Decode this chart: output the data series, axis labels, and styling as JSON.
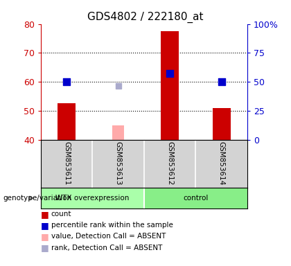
{
  "title": "GDS4802 / 222180_at",
  "samples": [
    "GSM853611",
    "GSM853613",
    "GSM853612",
    "GSM853614"
  ],
  "count_values": [
    52.5,
    null,
    77.5,
    51.0
  ],
  "percentile_values": [
    60.0,
    null,
    63.0,
    60.0
  ],
  "absent_value_bars": [
    null,
    45.0,
    null,
    null
  ],
  "absent_rank_markers": [
    null,
    58.5,
    null,
    null
  ],
  "ylim_left": [
    40,
    80
  ],
  "ylim_right": [
    0,
    100
  ],
  "yticks_left": [
    40,
    50,
    60,
    70,
    80
  ],
  "yticks_right": [
    0,
    25,
    50,
    75,
    100
  ],
  "ytick_labels_right": [
    "0",
    "25",
    "50",
    "75",
    "100%"
  ],
  "color_count": "#cc0000",
  "color_percentile": "#0000cc",
  "color_absent_value": "#ffaaaa",
  "color_absent_rank": "#aaaacc",
  "group1_color": "#aaffaa",
  "group2_color": "#88ee88",
  "bar_width": 0.35,
  "marker_size": 55,
  "group1_label": "WTX overexpression",
  "group2_label": "control",
  "genotype_label": "genotype/variation",
  "legend_items": [
    {
      "symbol": "count",
      "color": "#cc0000"
    },
    {
      "symbol": "percentile rank within the sample",
      "color": "#0000cc"
    },
    {
      "symbol": "value, Detection Call = ABSENT",
      "color": "#ffaaaa"
    },
    {
      "symbol": "rank, Detection Call = ABSENT",
      "color": "#aaaacc"
    }
  ]
}
